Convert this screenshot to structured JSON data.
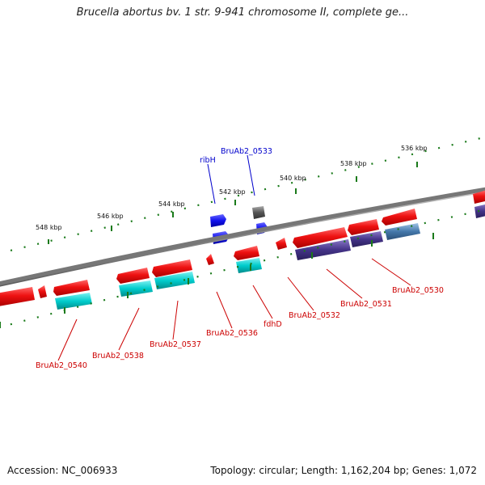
{
  "title": "Brucella abortus bv. 1 str. 9-941 chromosome II, complete ge...",
  "footer": {
    "accession": "Accession: NC_006933",
    "topology": "Topology: circular; Length: 1,162,204 bp; Genes: 1,072"
  },
  "scale_labels": [
    "548 kbp",
    "546 kbp",
    "544 kbp",
    "542 kbp",
    "540 kbp",
    "538 kbp",
    "536 kbp"
  ],
  "gene_labels": [
    {
      "text": "ribH",
      "color": "#0000cc"
    },
    {
      "text": "BruAb2_0533",
      "color": "#0000cc"
    },
    {
      "text": "BruAb2_0540",
      "color": "#cc0000"
    },
    {
      "text": "BruAb2_0538",
      "color": "#cc0000"
    },
    {
      "text": "BruAb2_0537",
      "color": "#cc0000"
    },
    {
      "text": "BruAb2_0536",
      "color": "#cc0000"
    },
    {
      "text": "fdhD",
      "color": "#cc0000"
    },
    {
      "text": "BruAb2_0532",
      "color": "#cc0000"
    },
    {
      "text": "BruAb2_0531",
      "color": "#cc0000"
    },
    {
      "text": "BruAb2_0530",
      "color": "#cc0000"
    }
  ],
  "colors": {
    "backbone": "#8a8a8a",
    "ticks": "#1a7a1a",
    "cds_forward": "#ee1111",
    "cds_reverse": "#ee1111",
    "cog_cyan": "#00cccc",
    "cog_purple": "#443388",
    "cog_steel": "#4477aa",
    "cog_blue": "#1111ee",
    "cog_gray": "#555555"
  }
}
